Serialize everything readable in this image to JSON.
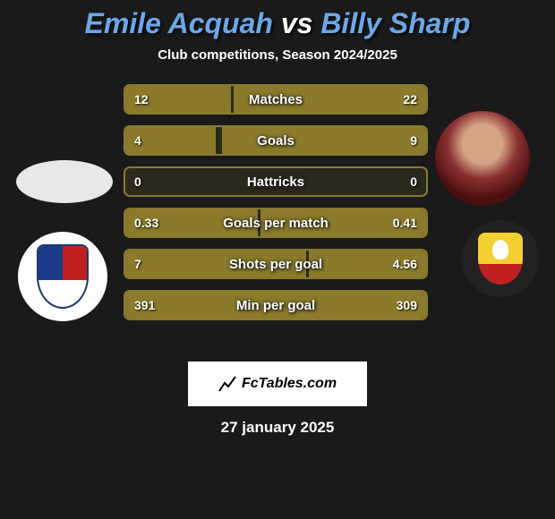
{
  "player1": {
    "name": "Emile Acquah",
    "color": "#6aa8e8"
  },
  "player2": {
    "name": "Billy Sharp",
    "color": "#6aa8e8"
  },
  "vs_text": "vs",
  "subtitle": "Club competitions, Season 2024/2025",
  "rows": [
    {
      "label": "Matches",
      "left": "12",
      "right": "22",
      "left_pct": 35,
      "right_pct": 64
    },
    {
      "label": "Goals",
      "left": "4",
      "right": "9",
      "left_pct": 30,
      "right_pct": 68
    },
    {
      "label": "Hattricks",
      "left": "0",
      "right": "0",
      "left_pct": 0,
      "right_pct": 0
    },
    {
      "label": "Goals per match",
      "left": "0.33",
      "right": "0.41",
      "left_pct": 44,
      "right_pct": 55
    },
    {
      "label": "Shots per goal",
      "left": "7",
      "right": "4.56",
      "left_pct": 60,
      "right_pct": 39
    },
    {
      "label": "Min per goal",
      "left": "391",
      "right": "309",
      "left_pct": 56,
      "right_pct": 44
    }
  ],
  "bar_color": "#8a7a2a",
  "bar_border": "#8a7a2a",
  "logo_text": "FcTables.com",
  "date": "27 january 2025",
  "background": "#1a1a1a"
}
